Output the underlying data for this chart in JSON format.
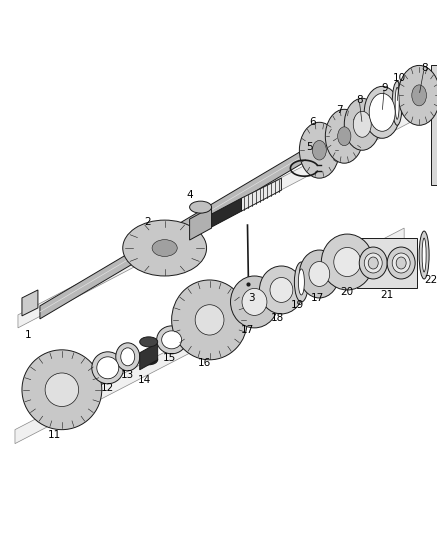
{
  "bg_color": "#ffffff",
  "lc": "#1a1a1a",
  "lw": 0.7,
  "figsize": [
    4.38,
    5.33
  ],
  "dpi": 100,
  "shaft_color": "#b8b8b8",
  "gear_color": "#c8c8c8",
  "gear_dark": "#a0a0a0",
  "ring_color": "#d0d0d0",
  "black_color": "#2a2a2a",
  "box_color": "#e0e0e0",
  "shelf_color": "#f0f0f0",
  "shelf_edge": "#888888"
}
